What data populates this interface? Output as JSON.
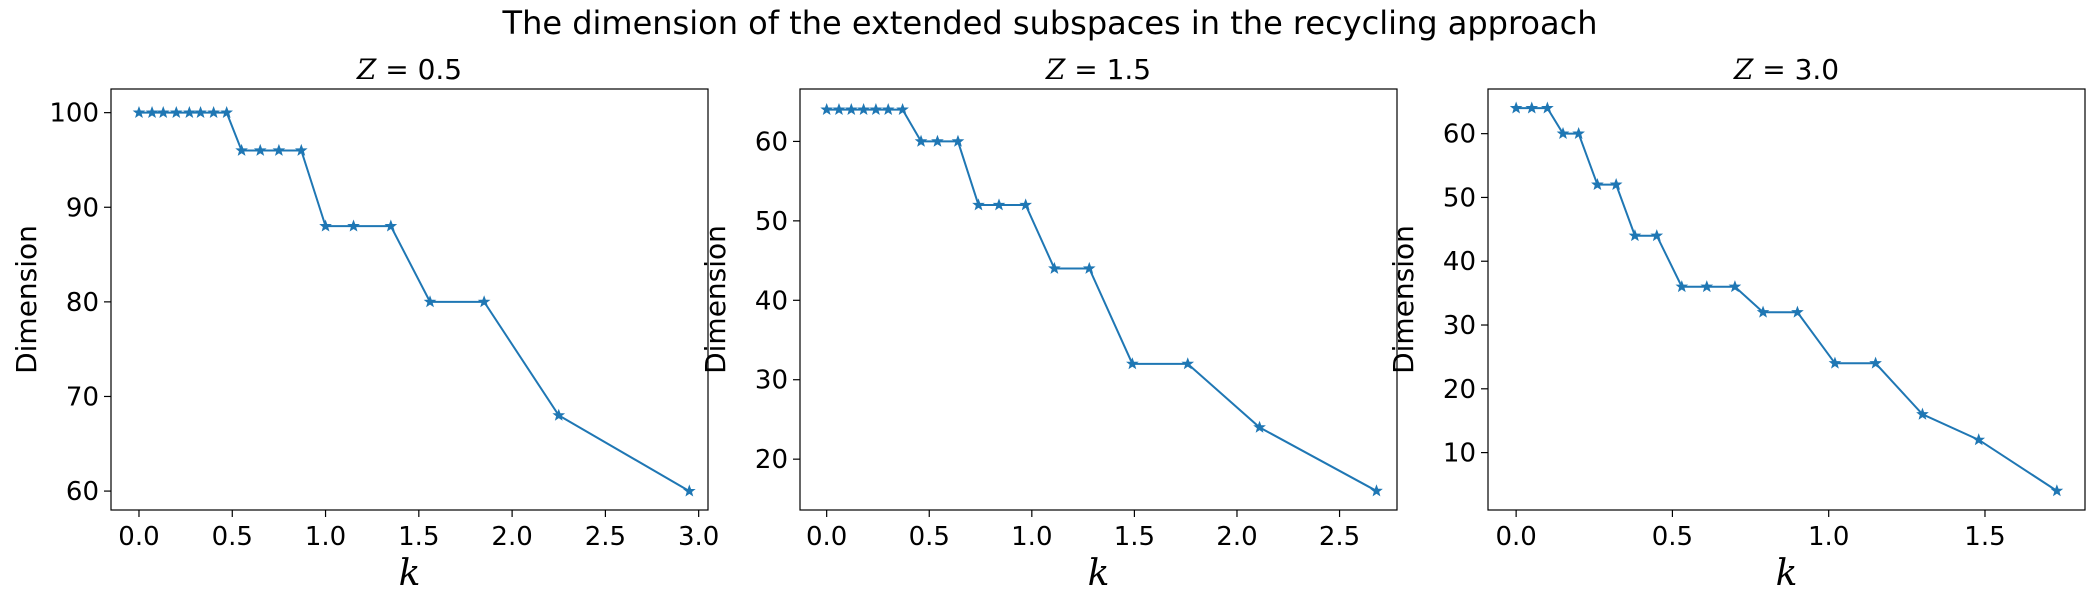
{
  "figure": {
    "title": "The dimension of the extended subspaces in the recycling approach"
  },
  "colors": {
    "series": "#1f77b4",
    "axes": "#000000",
    "background": "#ffffff"
  },
  "chart_data": [
    {
      "type": "line",
      "title": "Z = 0.5",
      "title_var": "Z",
      "title_value": "= 0.5",
      "xlabel": "k",
      "ylabel": "Dimension",
      "marker": "star",
      "xlim": [
        -0.15,
        3.05
      ],
      "ylim": [
        58,
        102.5
      ],
      "xticks": [
        0.0,
        0.5,
        1.0,
        1.5,
        2.0,
        2.5,
        3.0
      ],
      "xtick_labels": [
        "0.0",
        "0.5",
        "1.0",
        "1.5",
        "2.0",
        "2.5",
        "3.0"
      ],
      "yticks": [
        60,
        70,
        80,
        90,
        100
      ],
      "ytick_labels": [
        "60",
        "70",
        "80",
        "90",
        "100"
      ],
      "x": [
        0.0,
        0.07,
        0.13,
        0.2,
        0.27,
        0.33,
        0.4,
        0.47,
        0.55,
        0.65,
        0.75,
        0.87,
        1.0,
        1.15,
        1.35,
        1.56,
        1.85,
        2.25,
        2.95
      ],
      "y": [
        100,
        100,
        100,
        100,
        100,
        100,
        100,
        100,
        96,
        96,
        96,
        96,
        88,
        88,
        88,
        80,
        80,
        68,
        60
      ]
    },
    {
      "type": "line",
      "title": "Z = 1.5",
      "title_var": "Z",
      "title_value": "= 1.5",
      "xlabel": "k",
      "ylabel": "Dimension",
      "marker": "star",
      "xlim": [
        -0.13,
        2.78
      ],
      "ylim": [
        13.6,
        66.6
      ],
      "xticks": [
        0.0,
        0.5,
        1.0,
        1.5,
        2.0,
        2.5
      ],
      "xtick_labels": [
        "0.0",
        "0.5",
        "1.0",
        "1.5",
        "2.0",
        "2.5"
      ],
      "yticks": [
        20,
        30,
        40,
        50,
        60
      ],
      "ytick_labels": [
        "20",
        "30",
        "40",
        "50",
        "60"
      ],
      "x": [
        0.0,
        0.06,
        0.12,
        0.18,
        0.24,
        0.3,
        0.37,
        0.46,
        0.54,
        0.64,
        0.74,
        0.84,
        0.97,
        1.11,
        1.28,
        1.49,
        1.76,
        2.11,
        2.68
      ],
      "y": [
        64,
        64,
        64,
        64,
        64,
        64,
        64,
        60,
        60,
        60,
        52,
        52,
        52,
        44,
        44,
        32,
        32,
        24,
        16
      ]
    },
    {
      "type": "line",
      "title": "Z = 3.0",
      "title_var": "Z",
      "title_value": "= 3.0",
      "xlabel": "k",
      "ylabel": "Dimension",
      "marker": "star",
      "xlim": [
        -0.09,
        1.82
      ],
      "ylim": [
        1.0,
        67.0
      ],
      "xticks": [
        0.0,
        0.5,
        1.0,
        1.5
      ],
      "xtick_labels": [
        "0.0",
        "0.5",
        "1.0",
        "1.5"
      ],
      "yticks": [
        10,
        20,
        30,
        40,
        50,
        60
      ],
      "ytick_labels": [
        "10",
        "20",
        "30",
        "40",
        "50",
        "60"
      ],
      "x": [
        0.0,
        0.05,
        0.1,
        0.15,
        0.2,
        0.26,
        0.32,
        0.38,
        0.45,
        0.53,
        0.61,
        0.7,
        0.79,
        0.9,
        1.02,
        1.15,
        1.3,
        1.48,
        1.73
      ],
      "y": [
        64,
        64,
        64,
        60,
        60,
        52,
        52,
        44,
        44,
        36,
        36,
        36,
        32,
        32,
        24,
        24,
        16,
        12,
        4
      ]
    }
  ]
}
